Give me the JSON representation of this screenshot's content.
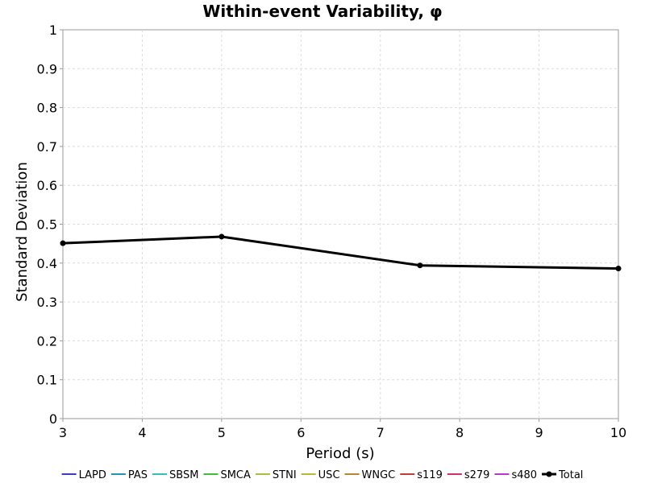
{
  "chart_data": {
    "type": "line",
    "title": "Within-event Variability, φ",
    "xlabel": "Period (s)",
    "ylabel": "Standard Deviation",
    "xlim": [
      3,
      10
    ],
    "ylim": [
      0,
      1
    ],
    "xticks": [
      "3",
      "4",
      "5",
      "6",
      "7",
      "8",
      "9",
      "10"
    ],
    "yticks": [
      "0",
      "0.1",
      "0.2",
      "0.3",
      "0.4",
      "0.5",
      "0.6",
      "0.7",
      "0.8",
      "0.9",
      "1"
    ],
    "grid": true,
    "legend_position": "bottom",
    "series": [
      {
        "name": "LAPD",
        "color": "#3b3bc4",
        "values": []
      },
      {
        "name": "PAS",
        "color": "#2a8fb0",
        "values": []
      },
      {
        "name": "SBSM",
        "color": "#36c0b0",
        "values": []
      },
      {
        "name": "SMCA",
        "color": "#3cc03c",
        "values": []
      },
      {
        "name": "STNI",
        "color": "#a8c03c",
        "values": []
      },
      {
        "name": "USC",
        "color": "#c0b43c",
        "values": []
      },
      {
        "name": "WNGC",
        "color": "#b8862c",
        "values": []
      },
      {
        "name": "s119",
        "color": "#c03c3c",
        "values": []
      },
      {
        "name": "s279",
        "color": "#d0306a",
        "values": []
      },
      {
        "name": "s480",
        "color": "#b43cc4",
        "values": []
      },
      {
        "name": "Total",
        "color": "#000000",
        "x": [
          3,
          5,
          7.5,
          10
        ],
        "values": [
          0.451,
          0.468,
          0.394,
          0.386
        ]
      }
    ]
  }
}
